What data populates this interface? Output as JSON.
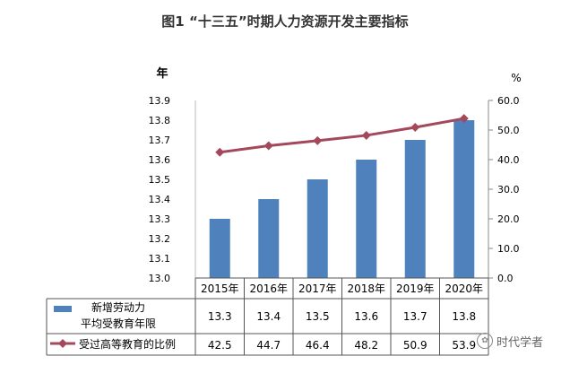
{
  "chart_data": {
    "type": "bar+line",
    "title": "图1 “十三五”时期人力资源开发主要指标",
    "categories": [
      "2015年",
      "2016年",
      "2017年",
      "2018年",
      "2019年",
      "2020年"
    ],
    "y_left": {
      "label": "年",
      "ticks": [
        "13.0",
        "13.1",
        "13.2",
        "13.3",
        "13.4",
        "13.5",
        "13.6",
        "13.7",
        "13.8",
        "13.9"
      ],
      "ylim": [
        13.0,
        13.9
      ]
    },
    "y_right": {
      "label": "%",
      "ticks": [
        "0.0",
        "10.0",
        "20.0",
        "30.0",
        "40.0",
        "50.0",
        "60.0"
      ],
      "ylim": [
        0,
        60
      ]
    },
    "series": [
      {
        "name_line1": "新增劳动力",
        "name_line2": "平均受教育年限",
        "type": "bar",
        "axis": "left",
        "color": "#4f81bd",
        "values": [
          13.3,
          13.4,
          13.5,
          13.6,
          13.7,
          13.8
        ],
        "labels": [
          "13.3",
          "13.4",
          "13.5",
          "13.6",
          "13.7",
          "13.8"
        ]
      },
      {
        "name": "受过高等教育的比例",
        "type": "line",
        "axis": "right",
        "color": "#a4485c",
        "values": [
          42.5,
          44.7,
          46.4,
          48.2,
          50.9,
          53.9
        ],
        "labels": [
          "42.5",
          "44.7",
          "46.4",
          "48.2",
          "50.9",
          "53.9"
        ]
      }
    ],
    "grid": false,
    "legend": "data-table"
  },
  "watermark": {
    "text": "时代学者"
  }
}
